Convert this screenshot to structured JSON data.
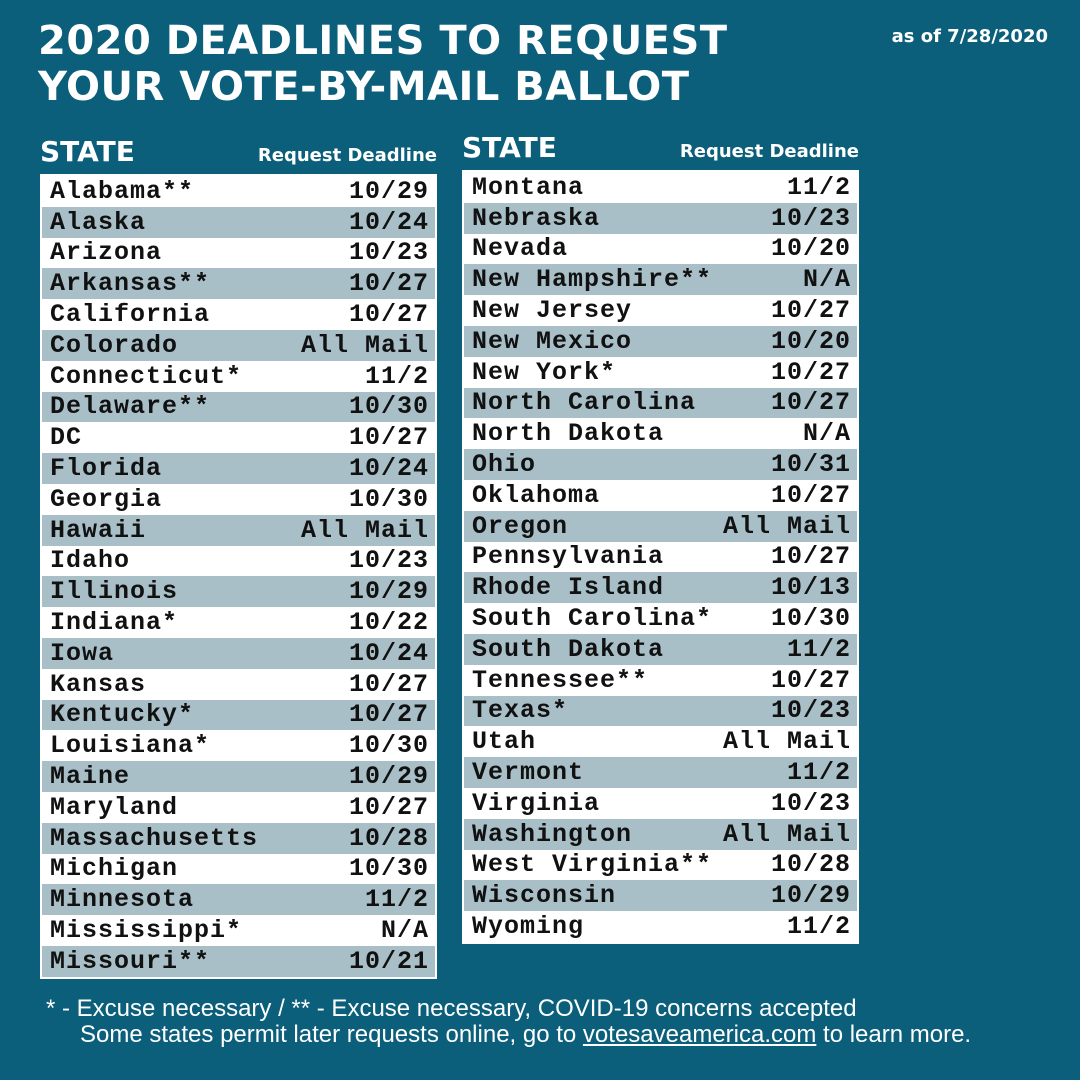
{
  "title_line1": "2020 DEADLINES TO REQUEST",
  "title_line2": "YOUR VOTE-BY-MAIL BALLOT",
  "as_of": "as of 7/28/2020",
  "column_header_state": "STATE",
  "column_header_deadline": "Request Deadline",
  "left_rows": [
    {
      "state": "Alabama**",
      "deadline": "10/29"
    },
    {
      "state": "Alaska",
      "deadline": "10/24"
    },
    {
      "state": "Arizona",
      "deadline": "10/23"
    },
    {
      "state": "Arkansas**",
      "deadline": "10/27"
    },
    {
      "state": "California",
      "deadline": "10/27"
    },
    {
      "state": "Colorado",
      "deadline": "All Mail"
    },
    {
      "state": "Connecticut*",
      "deadline": "11/2"
    },
    {
      "state": "Delaware**",
      "deadline": "10/30"
    },
    {
      "state": "DC",
      "deadline": "10/27"
    },
    {
      "state": "Florida",
      "deadline": "10/24"
    },
    {
      "state": "Georgia",
      "deadline": "10/30"
    },
    {
      "state": "Hawaii",
      "deadline": "All Mail"
    },
    {
      "state": "Idaho",
      "deadline": "10/23"
    },
    {
      "state": "Illinois",
      "deadline": "10/29"
    },
    {
      "state": "Indiana*",
      "deadline": "10/22"
    },
    {
      "state": "Iowa",
      "deadline": "10/24"
    },
    {
      "state": "Kansas",
      "deadline": "10/27"
    },
    {
      "state": "Kentucky*",
      "deadline": "10/27"
    },
    {
      "state": "Louisiana*",
      "deadline": "10/30"
    },
    {
      "state": "Maine",
      "deadline": "10/29"
    },
    {
      "state": "Maryland",
      "deadline": "10/27"
    },
    {
      "state": "Massachusetts",
      "deadline": "10/28"
    },
    {
      "state": "Michigan",
      "deadline": "10/30"
    },
    {
      "state": "Minnesota",
      "deadline": "11/2"
    },
    {
      "state": "Mississippi*",
      "deadline": "N/A"
    },
    {
      "state": "Missouri**",
      "deadline": "10/21"
    }
  ],
  "right_rows": [
    {
      "state": "Montana",
      "deadline": "11/2"
    },
    {
      "state": "Nebraska",
      "deadline": "10/23"
    },
    {
      "state": "Nevada",
      "deadline": "10/20"
    },
    {
      "state": "New Hampshire**",
      "deadline": "N/A"
    },
    {
      "state": "New Jersey",
      "deadline": "10/27"
    },
    {
      "state": "New Mexico",
      "deadline": "10/20"
    },
    {
      "state": "New York*",
      "deadline": "10/27"
    },
    {
      "state": "North Carolina",
      "deadline": "10/27"
    },
    {
      "state": "North Dakota",
      "deadline": "N/A"
    },
    {
      "state": "Ohio",
      "deadline": "10/31"
    },
    {
      "state": "Oklahoma",
      "deadline": "10/27"
    },
    {
      "state": "Oregon",
      "deadline": "All Mail"
    },
    {
      "state": "Pennsylvania",
      "deadline": "10/27"
    },
    {
      "state": "Rhode Island",
      "deadline": "10/13"
    },
    {
      "state": "South Carolina*",
      "deadline": "10/30"
    },
    {
      "state": "South Dakota",
      "deadline": "11/2"
    },
    {
      "state": "Tennessee**",
      "deadline": "10/27"
    },
    {
      "state": "Texas*",
      "deadline": "10/23"
    },
    {
      "state": "Utah",
      "deadline": "All Mail"
    },
    {
      "state": "Vermont",
      "deadline": "11/2"
    },
    {
      "state": "Virginia",
      "deadline": "10/23"
    },
    {
      "state": "Washington",
      "deadline": "All Mail"
    },
    {
      "state": "West Virginia**",
      "deadline": "10/28"
    },
    {
      "state": "Wisconsin",
      "deadline": "10/29"
    },
    {
      "state": "Wyoming",
      "deadline": "11/2"
    }
  ],
  "footnote_line1": "* - Excuse necessary /  ** - Excuse necessary, COVID-19 concerns accepted",
  "footnote_line2_before": "Some states permit later requests online, go to ",
  "footnote_link": "votesaveamerica.com",
  "footnote_line2_after": " to learn more."
}
